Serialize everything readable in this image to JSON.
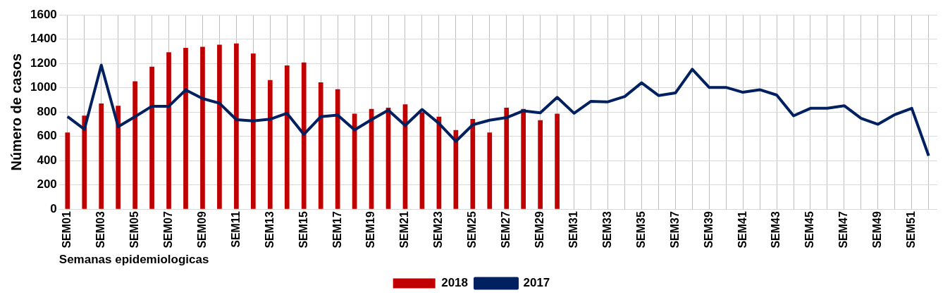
{
  "chart_data": {
    "type": "bar",
    "xlabel": "Semanas epidemiologicas",
    "ylabel": "Número de casos",
    "categories": [
      "SEM01",
      null,
      "SEM03",
      null,
      "SEM05",
      null,
      "SEM07",
      null,
      "SEM09",
      null,
      "SEM11",
      null,
      "SEM13",
      null,
      "SEM15",
      null,
      "SEM17",
      null,
      "SEM19",
      null,
      "SEM21",
      null,
      "SEM23",
      null,
      "SEM25",
      null,
      "SEM27",
      null,
      "SEM29",
      null,
      "SEM31",
      null,
      "SEM33",
      null,
      "SEM35",
      null,
      "SEM37",
      null,
      "SEM39",
      null,
      "SEM41",
      null,
      "SEM43",
      null,
      "SEM45",
      null,
      "SEM47",
      null,
      "SEM49",
      null,
      "SEM51",
      null
    ],
    "series": [
      {
        "name": "2018",
        "color": "#c00000",
        "values": [
          632,
          771,
          871,
          852,
          1053,
          1173,
          1292,
          1328,
          1338,
          1355,
          1365,
          1282,
          1064,
          1183,
          1208,
          1045,
          988,
          787,
          825,
          836,
          863,
          800,
          762,
          651,
          743,
          632,
          836,
          825,
          733,
          787,
          null,
          null,
          null,
          null,
          null,
          null,
          null,
          null,
          null,
          null,
          null,
          null,
          null,
          null,
          null,
          null,
          null,
          null,
          null,
          null,
          null,
          null
        ]
      },
      {
        "name": "2017",
        "type": "line",
        "color": "#002060",
        "values": [
          762,
          658,
          1187,
          679,
          762,
          848,
          848,
          982,
          911,
          873,
          737,
          727,
          741,
          790,
          616,
          762,
          775,
          653,
          737,
          815,
          689,
          821,
          706,
          559,
          695,
          733,
          754,
          810,
          794,
          921,
          790,
          888,
          884,
          928,
          1041,
          936,
          957,
          1152,
          1003,
          1003,
          963,
          984,
          940,
          769,
          831,
          831,
          852,
          748,
          699,
          779,
          831,
          440
        ]
      }
    ],
    "ylim": [
      0,
      1600
    ],
    "yticks": [
      0,
      200,
      400,
      600,
      800,
      1000,
      1200,
      1400,
      1600
    ],
    "grid": true,
    "legend": "bottom"
  }
}
